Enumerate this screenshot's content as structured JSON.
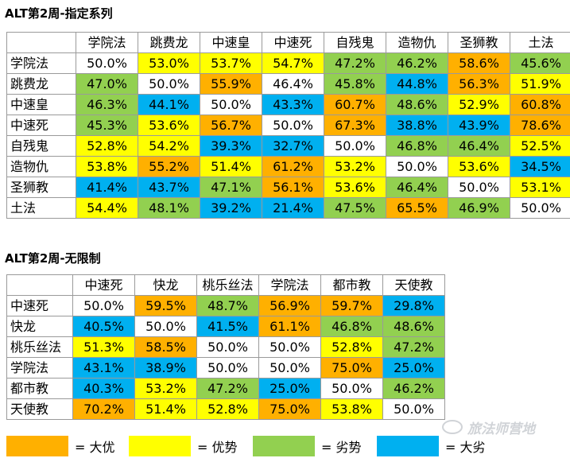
{
  "colors": {
    "big_advantage": "#ffb000",
    "advantage": "#ffff00",
    "disadvantage": "#92d050",
    "big_disadvantage": "#00b0f0",
    "even": "#ffffff"
  },
  "table1": {
    "title": "ALT第2周-指定系列",
    "columns": [
      "学院法",
      "跳费龙",
      "中速皇",
      "中速死",
      "自残鬼",
      "造物仇",
      "圣狮教",
      "土法"
    ],
    "rows": [
      {
        "label": "学院法",
        "cells": [
          {
            "v": "50.0%",
            "c": "even"
          },
          {
            "v": "53.0%",
            "c": "advantage"
          },
          {
            "v": "53.7%",
            "c": "advantage"
          },
          {
            "v": "54.7%",
            "c": "advantage"
          },
          {
            "v": "47.2%",
            "c": "disadvantage"
          },
          {
            "v": "46.2%",
            "c": "disadvantage"
          },
          {
            "v": "58.6%",
            "c": "big_advantage"
          },
          {
            "v": "45.6%",
            "c": "disadvantage"
          }
        ]
      },
      {
        "label": "跳费龙",
        "cells": [
          {
            "v": "47.0%",
            "c": "disadvantage"
          },
          {
            "v": "50.0%",
            "c": "even"
          },
          {
            "v": "55.9%",
            "c": "big_advantage"
          },
          {
            "v": "46.4%",
            "c": "even"
          },
          {
            "v": "45.8%",
            "c": "disadvantage"
          },
          {
            "v": "44.8%",
            "c": "big_disadvantage"
          },
          {
            "v": "56.3%",
            "c": "big_advantage"
          },
          {
            "v": "51.9%",
            "c": "advantage"
          }
        ]
      },
      {
        "label": "中速皇",
        "cells": [
          {
            "v": "46.3%",
            "c": "disadvantage"
          },
          {
            "v": "44.1%",
            "c": "big_disadvantage"
          },
          {
            "v": "50.0%",
            "c": "even"
          },
          {
            "v": "43.3%",
            "c": "big_disadvantage"
          },
          {
            "v": "60.7%",
            "c": "big_advantage"
          },
          {
            "v": "48.6%",
            "c": "disadvantage"
          },
          {
            "v": "52.9%",
            "c": "advantage"
          },
          {
            "v": "60.8%",
            "c": "big_advantage"
          }
        ]
      },
      {
        "label": "中速死",
        "cells": [
          {
            "v": "45.3%",
            "c": "disadvantage"
          },
          {
            "v": "53.6%",
            "c": "advantage"
          },
          {
            "v": "56.7%",
            "c": "big_advantage"
          },
          {
            "v": "50.0%",
            "c": "even"
          },
          {
            "v": "67.3%",
            "c": "big_advantage"
          },
          {
            "v": "38.8%",
            "c": "big_disadvantage"
          },
          {
            "v": "43.9%",
            "c": "big_disadvantage"
          },
          {
            "v": "78.6%",
            "c": "big_advantage"
          }
        ]
      },
      {
        "label": "自残鬼",
        "cells": [
          {
            "v": "52.8%",
            "c": "advantage"
          },
          {
            "v": "54.2%",
            "c": "advantage"
          },
          {
            "v": "39.3%",
            "c": "big_disadvantage"
          },
          {
            "v": "32.7%",
            "c": "big_disadvantage"
          },
          {
            "v": "50.0%",
            "c": "even"
          },
          {
            "v": "46.8%",
            "c": "disadvantage"
          },
          {
            "v": "46.4%",
            "c": "disadvantage"
          },
          {
            "v": "52.5%",
            "c": "advantage"
          }
        ]
      },
      {
        "label": "造物仇",
        "cells": [
          {
            "v": "53.8%",
            "c": "advantage"
          },
          {
            "v": "55.2%",
            "c": "big_advantage"
          },
          {
            "v": "51.4%",
            "c": "advantage"
          },
          {
            "v": "61.2%",
            "c": "big_advantage"
          },
          {
            "v": "53.2%",
            "c": "advantage"
          },
          {
            "v": "50.0%",
            "c": "even"
          },
          {
            "v": "53.6%",
            "c": "advantage"
          },
          {
            "v": "34.5%",
            "c": "big_disadvantage"
          }
        ]
      },
      {
        "label": "圣狮教",
        "cells": [
          {
            "v": "41.4%",
            "c": "big_disadvantage"
          },
          {
            "v": "43.7%",
            "c": "big_disadvantage"
          },
          {
            "v": "47.1%",
            "c": "disadvantage"
          },
          {
            "v": "56.1%",
            "c": "big_advantage"
          },
          {
            "v": "53.6%",
            "c": "advantage"
          },
          {
            "v": "46.4%",
            "c": "disadvantage"
          },
          {
            "v": "50.0%",
            "c": "even"
          },
          {
            "v": "53.1%",
            "c": "advantage"
          }
        ]
      },
      {
        "label": "土法",
        "cells": [
          {
            "v": "54.4%",
            "c": "advantage"
          },
          {
            "v": "48.1%",
            "c": "disadvantage"
          },
          {
            "v": "39.2%",
            "c": "big_disadvantage"
          },
          {
            "v": "21.4%",
            "c": "big_disadvantage"
          },
          {
            "v": "47.5%",
            "c": "disadvantage"
          },
          {
            "v": "65.5%",
            "c": "big_advantage"
          },
          {
            "v": "46.9%",
            "c": "disadvantage"
          },
          {
            "v": "50.0%",
            "c": "even"
          }
        ]
      }
    ]
  },
  "table2": {
    "title": "ALT第2周-无限制",
    "columns": [
      "中速死",
      "快龙",
      "桃乐丝法",
      "学院法",
      "都市教",
      "天使教"
    ],
    "rows": [
      {
        "label": "中速死",
        "cells": [
          {
            "v": "50.0%",
            "c": "even"
          },
          {
            "v": "59.5%",
            "c": "big_advantage"
          },
          {
            "v": "48.7%",
            "c": "disadvantage"
          },
          {
            "v": "56.9%",
            "c": "big_advantage"
          },
          {
            "v": "59.7%",
            "c": "big_advantage"
          },
          {
            "v": "29.8%",
            "c": "big_disadvantage"
          }
        ]
      },
      {
        "label": "快龙",
        "cells": [
          {
            "v": "40.5%",
            "c": "big_disadvantage"
          },
          {
            "v": "50.0%",
            "c": "even"
          },
          {
            "v": "41.5%",
            "c": "big_disadvantage"
          },
          {
            "v": "61.1%",
            "c": "big_advantage"
          },
          {
            "v": "46.8%",
            "c": "disadvantage"
          },
          {
            "v": "48.6%",
            "c": "disadvantage"
          }
        ]
      },
      {
        "label": "桃乐丝法",
        "cells": [
          {
            "v": "51.3%",
            "c": "advantage"
          },
          {
            "v": "58.5%",
            "c": "big_advantage"
          },
          {
            "v": "50.0%",
            "c": "even"
          },
          {
            "v": "50.0%",
            "c": "even"
          },
          {
            "v": "52.8%",
            "c": "advantage"
          },
          {
            "v": "47.2%",
            "c": "disadvantage"
          }
        ]
      },
      {
        "label": "学院法",
        "cells": [
          {
            "v": "43.1%",
            "c": "big_disadvantage"
          },
          {
            "v": "38.9%",
            "c": "big_disadvantage"
          },
          {
            "v": "50.0%",
            "c": "even"
          },
          {
            "v": "50.0%",
            "c": "even"
          },
          {
            "v": "75.0%",
            "c": "big_advantage"
          },
          {
            "v": "25.0%",
            "c": "big_disadvantage"
          }
        ]
      },
      {
        "label": "都市教",
        "cells": [
          {
            "v": "40.3%",
            "c": "big_disadvantage"
          },
          {
            "v": "53.2%",
            "c": "advantage"
          },
          {
            "v": "47.2%",
            "c": "disadvantage"
          },
          {
            "v": "25.0%",
            "c": "big_disadvantage"
          },
          {
            "v": "50.0%",
            "c": "even"
          },
          {
            "v": "46.2%",
            "c": "disadvantage"
          }
        ]
      },
      {
        "label": "天使教",
        "cells": [
          {
            "v": "70.2%",
            "c": "big_advantage"
          },
          {
            "v": "51.4%",
            "c": "advantage"
          },
          {
            "v": "52.8%",
            "c": "advantage"
          },
          {
            "v": "75.0%",
            "c": "big_advantage"
          },
          {
            "v": "53.8%",
            "c": "advantage"
          },
          {
            "v": "50.0%",
            "c": "even"
          }
        ]
      }
    ]
  },
  "legend": [
    {
      "label": "= 大优",
      "c": "big_advantage"
    },
    {
      "label": "= 优势",
      "c": "advantage"
    },
    {
      "label": "= 劣势",
      "c": "disadvantage"
    },
    {
      "label": "= 大劣",
      "c": "big_disadvantage"
    }
  ],
  "watermark": {
    "text": "旅法师营地"
  }
}
